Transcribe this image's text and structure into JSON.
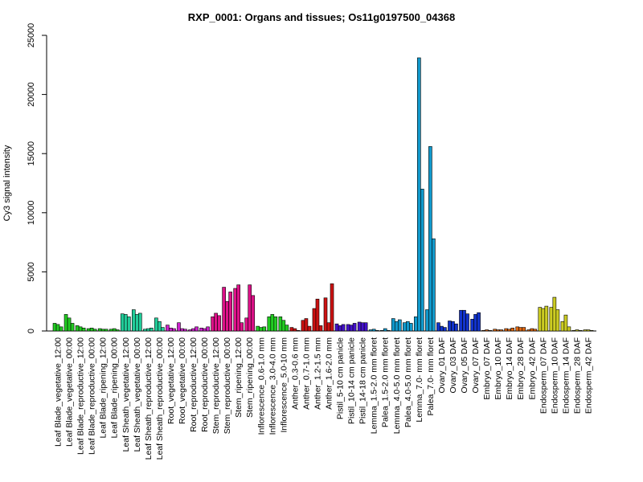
{
  "chart_data": {
    "type": "bar",
    "title": "RXP_0001: Organs and tissues; Os11g0197500_04368",
    "xlabel": "",
    "ylabel": "Cy3 signal intensity",
    "ylim": [
      0,
      25000
    ],
    "yticks": [
      0,
      5000,
      10000,
      15000,
      20000,
      25000
    ],
    "grid": false,
    "legend": "none",
    "groups": [
      {
        "label": "Leaf Blade_vegetative_12:00",
        "color": "#22cc22",
        "values": [
          650,
          550,
          350
        ]
      },
      {
        "label": "Leaf Blade_vegetative_00:00",
        "color": "#22cc22",
        "values": [
          1400,
          1100,
          650
        ]
      },
      {
        "label": "Leaf Blade_reproductive_12:00",
        "color": "#22cc22",
        "values": [
          450,
          350,
          250
        ]
      },
      {
        "label": "Leaf Blade_reproductive_00:00",
        "color": "#22cc22",
        "values": [
          200,
          250,
          150
        ]
      },
      {
        "label": "Leaf Blade_ripening_12:00",
        "color": "#22cc22",
        "values": [
          200,
          150,
          150
        ]
      },
      {
        "label": "Leaf Blade_ripening_00:00",
        "color": "#22cc22",
        "values": [
          150,
          200,
          100
        ]
      },
      {
        "label": "Leaf Sheath_vegetative_12:00",
        "color": "#22cc99",
        "values": [
          1450,
          1400,
          1200
        ]
      },
      {
        "label": "Leaf Sheath_vegetative_00:00",
        "color": "#22cc99",
        "values": [
          1800,
          1400,
          1500
        ]
      },
      {
        "label": "Leaf Sheath_reproductive_12:00",
        "color": "#22cc99",
        "values": [
          150,
          200,
          250
        ]
      },
      {
        "label": "Leaf Sheath_reproductive_00:00",
        "color": "#22cc99",
        "values": [
          1100,
          800,
          300
        ]
      },
      {
        "label": "Root_vegetative_12:00",
        "color": "#cc22cc",
        "values": [
          500,
          250,
          200
        ]
      },
      {
        "label": "Root_vegetative_00:00",
        "color": "#cc22cc",
        "values": [
          700,
          200,
          150
        ]
      },
      {
        "label": "Root_reproductive_12:00",
        "color": "#cc22cc",
        "values": [
          100,
          200,
          350
        ]
      },
      {
        "label": "Root_reproductive_00:00",
        "color": "#cc22cc",
        "values": [
          250,
          200,
          350
        ]
      },
      {
        "label": "Stem_reproductive_12:00",
        "color": "#dd1188",
        "values": [
          1200,
          1500,
          1300
        ]
      },
      {
        "label": "Stem_reproductive_00:00",
        "color": "#dd1188",
        "values": [
          3700,
          2500,
          3300
        ]
      },
      {
        "label": "Stem_ripening_12:00",
        "color": "#dd1188",
        "values": [
          3600,
          3900,
          700
        ]
      },
      {
        "label": "Stem_ripening_00:00",
        "color": "#dd1188",
        "values": [
          1100,
          3900,
          3000
        ]
      },
      {
        "label": "Inflorescence_0.6-1.0 mm",
        "color": "#22cc22",
        "values": [
          400,
          300,
          350
        ]
      },
      {
        "label": "Inflorescence_3.0-4.0 mm",
        "color": "#22cc22",
        "values": [
          1200,
          1400,
          1200
        ]
      },
      {
        "label": "Inflorescence_5.0-10 mm",
        "color": "#22cc22",
        "values": [
          1200,
          900,
          500
        ]
      },
      {
        "label": "Anther_0.3-0.6 mm",
        "color": "#cc1111",
        "values": [
          300,
          200,
          50
        ]
      },
      {
        "label": "Anther_0.7-1.0 mm",
        "color": "#cc1111",
        "values": [
          900,
          1050,
          400
        ]
      },
      {
        "label": "Anther_1.2-1.5 mm",
        "color": "#cc1111",
        "values": [
          1900,
          2700,
          450
        ]
      },
      {
        "label": "Anther_1.6-2.0 mm",
        "color": "#cc1111",
        "values": [
          2800,
          700,
          4000
        ]
      },
      {
        "label": "Pistil_5-10 cm panicle",
        "color": "#4411cc",
        "values": [
          600,
          450,
          550
        ]
      },
      {
        "label": "Pistil_10-14 cm panicle",
        "color": "#4411cc",
        "values": [
          550,
          500,
          650
        ]
      },
      {
        "label": "Pistil_14-18 cm panicle",
        "color": "#4411cc",
        "values": [
          750,
          700,
          700
        ]
      },
      {
        "label": "Lemma_1.5-2.0 mm floret",
        "color": "#1199cc",
        "values": [
          100,
          150,
          50
        ]
      },
      {
        "label": "Palea_1.5-2.0 mm floret",
        "color": "#1199cc",
        "values": [
          50,
          200,
          50
        ]
      },
      {
        "label": "Lemma_4.0-5.0 mm floret",
        "color": "#1199cc",
        "values": [
          1050,
          800,
          950
        ]
      },
      {
        "label": "Palea_4.0-5.0 mm floret",
        "color": "#1199cc",
        "values": [
          700,
          800,
          650
        ]
      },
      {
        "label": "Lemma_7.0- mm floret",
        "color": "#1199cc",
        "values": [
          1200,
          23100,
          12000
        ]
      },
      {
        "label": "Palea_7.0- mm floret",
        "color": "#1199cc",
        "values": [
          1800,
          15600,
          7800
        ]
      },
      {
        "label": "Ovary_01 DAF",
        "color": "#1133cc",
        "values": [
          700,
          400,
          300
        ]
      },
      {
        "label": "Ovary_03 DAF",
        "color": "#1133cc",
        "values": [
          850,
          800,
          600
        ]
      },
      {
        "label": "Ovary_05 DAF",
        "color": "#1133cc",
        "values": [
          1750,
          1750,
          1450
        ]
      },
      {
        "label": "Ovary_07 DAF",
        "color": "#1133cc",
        "values": [
          1000,
          1400,
          1550
        ]
      },
      {
        "label": "Embryo_07 DAF",
        "color": "#dd6611",
        "values": [
          50,
          100,
          50
        ]
      },
      {
        "label": "Embryo_10 DAF",
        "color": "#dd6611",
        "values": [
          150,
          100,
          100
        ]
      },
      {
        "label": "Embryo_14 DAF",
        "color": "#dd6611",
        "values": [
          200,
          150,
          250
        ]
      },
      {
        "label": "Embryo_28 DAF",
        "color": "#dd6611",
        "values": [
          350,
          300,
          300
        ]
      },
      {
        "label": "Embryo_42 DAF",
        "color": "#dd6611",
        "values": [
          100,
          200,
          150
        ]
      },
      {
        "label": "Endosperm_07 DAF",
        "color": "#cccc22",
        "values": [
          2000,
          1900,
          2100
        ]
      },
      {
        "label": "Endosperm_10 DAF",
        "color": "#cccc22",
        "values": [
          2000,
          2850,
          1800
        ]
      },
      {
        "label": "Endosperm_14 DAF",
        "color": "#cccc22",
        "values": [
          800,
          1350,
          350
        ]
      },
      {
        "label": "Endosperm_28 DAF",
        "color": "#cccc22",
        "values": [
          50,
          100,
          50
        ]
      },
      {
        "label": "Endosperm_42 DAF",
        "color": "#cccc22",
        "values": [
          100,
          100,
          50
        ]
      }
    ]
  }
}
